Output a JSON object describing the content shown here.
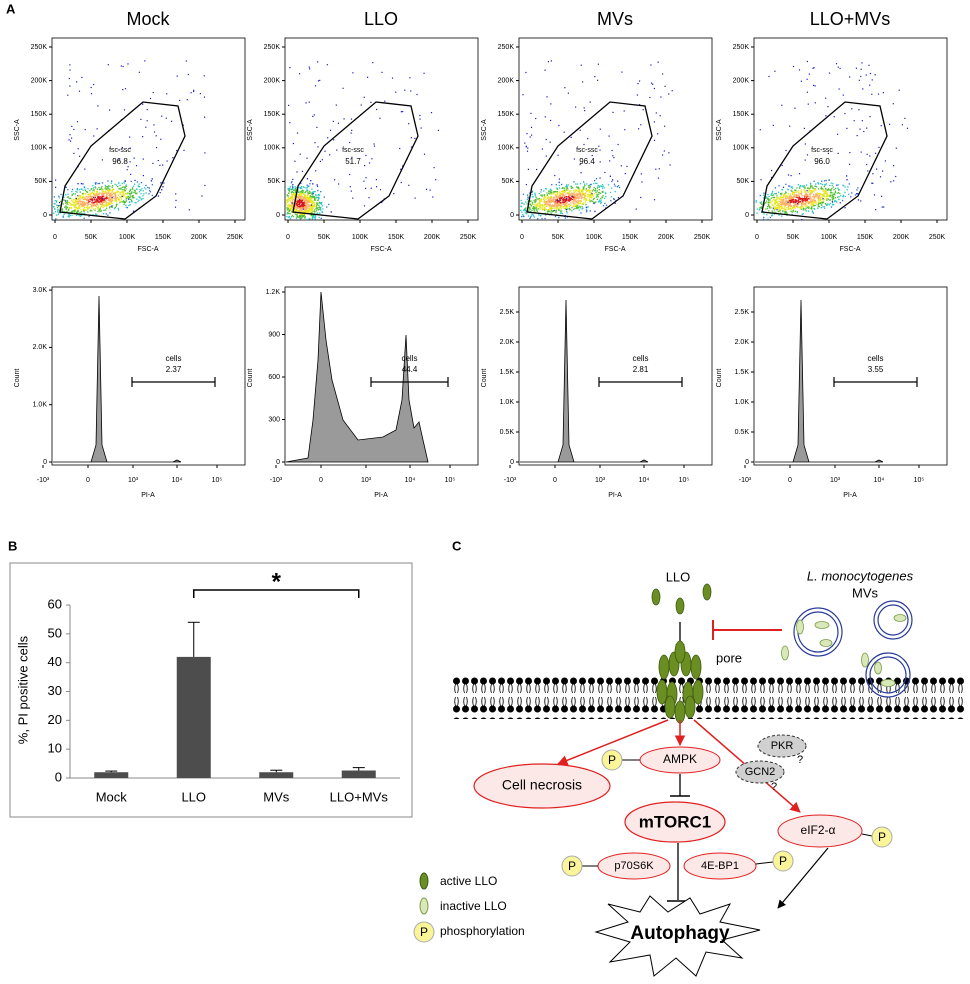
{
  "panel_a": {
    "label": "A",
    "titles": [
      "Mock",
      "LLO",
      "MVs",
      "LLO+MVs"
    ],
    "scatter": {
      "x_label": "FSC-A",
      "y_label": "SSC-A",
      "xticks": [
        "0",
        "50K",
        "100K",
        "150K",
        "200K",
        "250K"
      ],
      "yticks": [
        "0",
        "50K",
        "100K",
        "150K",
        "200K",
        "250K"
      ],
      "gate_name": "fsc-ssc",
      "gate_values": [
        "96.8",
        "51.7",
        "96.4",
        "96.0"
      ]
    },
    "histogram": {
      "x_label": "PI-A",
      "y_label": "Count",
      "xticks": [
        "-10³",
        "0",
        "10³",
        "10⁴",
        "10⁵"
      ],
      "yticks": [
        [
          "0",
          "1.0K",
          "2.0K",
          "3.0K"
        ],
        [
          "0",
          "300",
          "600",
          "900",
          "1.2K"
        ],
        [
          "0",
          "0.5K",
          "1.0K",
          "1.5K",
          "2.0K",
          "2.5K"
        ],
        [
          "0",
          "0.5K",
          "1.0K",
          "1.5K",
          "2.0K",
          "2.5K"
        ]
      ],
      "gate_name": "cells",
      "gate_values": [
        "2.37",
        "44.4",
        "2.81",
        "3.55"
      ]
    }
  },
  "panel_b": {
    "label": "B"
  },
  "chart_data": {
    "type": "bar",
    "y_label": "%, PI positive cells",
    "categories": [
      "Mock",
      "LLO",
      "MVs",
      "LLO+MVs"
    ],
    "values": [
      2,
      42,
      2,
      2.6
    ],
    "errors": [
      0.4,
      12,
      0.7,
      1
    ],
    "color": "#4d4d4d",
    "ylim": [
      0,
      60
    ],
    "yticks": [
      0,
      10,
      20,
      30,
      40,
      50,
      60
    ],
    "annotation": "*"
  },
  "panel_c": {
    "label": "C",
    "llo": "LLO",
    "species": "L. monocytogenes",
    "mvs": "MVs",
    "pore": "pore",
    "necrosis": "Cell necrosis",
    "ampk": "AMPK",
    "pkr": "PKR",
    "gcn2": "GCN2",
    "question": "?",
    "mtorc1": "mTORC1",
    "eif2": "eIF2-α",
    "p70s6k": "p70S6K",
    "ebp1": "4E-BP1",
    "autophagy": "Autophagy",
    "phospho_symbol": "P",
    "legend": [
      "active LLO",
      "inactive LLO",
      "phosphorylation"
    ]
  }
}
